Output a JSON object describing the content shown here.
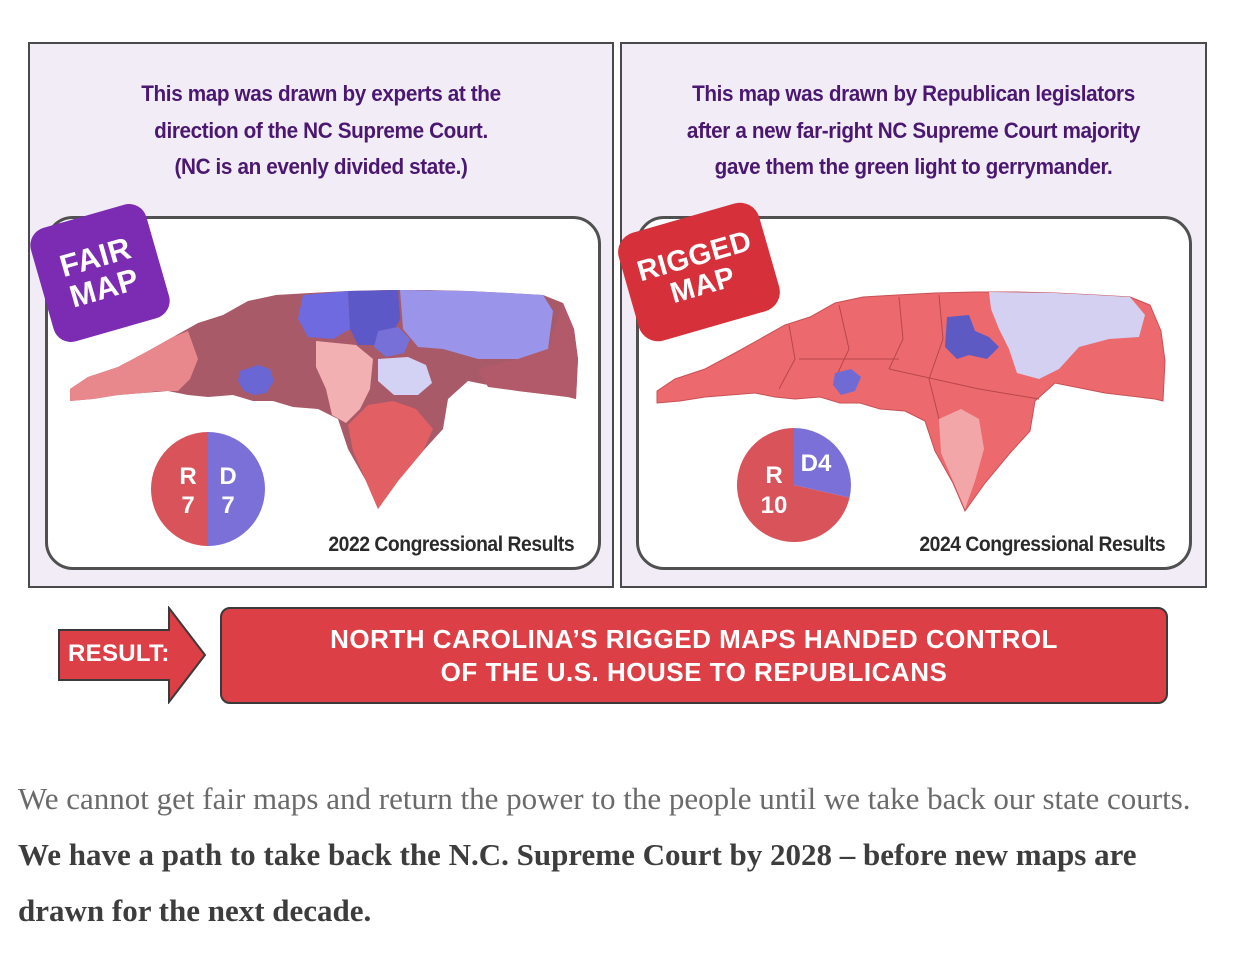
{
  "left_panel": {
    "caption_lines": [
      "This map was drawn by experts at the",
      "direction of the NC Supreme Court.",
      "(NC is an evenly divided state.)"
    ],
    "badge": [
      "FAIR",
      "MAP"
    ],
    "results_label": "2022 Congressional Results",
    "pie": {
      "left_letter": "R",
      "left_value": "7",
      "right_letter": "D",
      "right_value": "7"
    }
  },
  "right_panel": {
    "caption_lines": [
      "This map was drawn by Republican legislators",
      "after a new far-right NC Supreme Court majority",
      "gave them the green light to gerrymander."
    ],
    "badge": [
      "RIGGED",
      "MAP"
    ],
    "results_label": "2024 Congressional Results",
    "pie": {
      "r_letter": "R",
      "r_value": "10",
      "d_label": "D4"
    }
  },
  "result": {
    "arrow_label": "RESULT:",
    "banner_lines": [
      "NORTH CAROLINA’S RIGGED MAPS HANDED CONTROL",
      "OF THE U.S. HOUSE TO REPUBLICANS"
    ]
  },
  "bottom_text": {
    "plain": "We cannot get fair maps and return the power to the people until we take back our state courts. ",
    "bold": "We have a path to take back the N.C. Supreme Court by 2028 – before new maps are drawn for the next decade."
  },
  "colors": {
    "panel_bg": "#f2ecf7",
    "caption": "#4a1870",
    "fair_badge": "#7c2bb3",
    "rigged_badge": "#d6303a",
    "republican": "#d9535a",
    "democrat": "#7b6fd8",
    "banner": "#dc3f45"
  },
  "chart_data": [
    {
      "type": "pie",
      "title": "",
      "slices": [
        {
          "name": "R",
          "value": 7
        },
        {
          "name": "D",
          "value": 7
        }
      ]
    },
    {
      "type": "pie",
      "title": "",
      "slices": [
        {
          "name": "R",
          "value": 10
        },
        {
          "name": "D",
          "value": 4
        }
      ]
    }
  ]
}
